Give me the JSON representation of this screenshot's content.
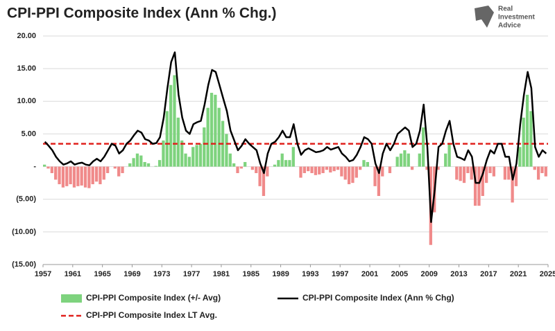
{
  "chart_data": {
    "type": "bar-line",
    "title": "CPI-PPI Composite Index (Ann % Chg.)",
    "logo": [
      "Real",
      "Investment",
      "Advice"
    ],
    "x": [
      1957,
      1957.5,
      1958,
      1958.5,
      1959,
      1959.5,
      1960,
      1960.5,
      1961,
      1961.5,
      1962,
      1962.5,
      1963,
      1963.5,
      1964,
      1964.5,
      1965,
      1965.5,
      1966,
      1966.5,
      1967,
      1967.5,
      1968,
      1968.5,
      1969,
      1969.5,
      1970,
      1970.5,
      1971,
      1971.5,
      1972,
      1972.5,
      1973,
      1973.5,
      1974,
      1974.5,
      1975,
      1975.5,
      1976,
      1976.5,
      1977,
      1977.5,
      1978,
      1978.5,
      1979,
      1979.5,
      1980,
      1980.5,
      1981,
      1981.5,
      1982,
      1982.5,
      1983,
      1983.5,
      1984,
      1984.5,
      1985,
      1985.5,
      1986,
      1986.5,
      1987,
      1987.5,
      1988,
      1988.5,
      1989,
      1989.5,
      1990,
      1990.5,
      1991,
      1991.5,
      1992,
      1992.5,
      1993,
      1993.5,
      1994,
      1994.5,
      1995,
      1995.5,
      1996,
      1996.5,
      1997,
      1997.5,
      1998,
      1998.5,
      1999,
      1999.5,
      2000,
      2000.5,
      2001,
      2001.5,
      2002,
      2002.5,
      2003,
      2003.5,
      2004,
      2004.5,
      2005,
      2005.5,
      2006,
      2006.5,
      2007,
      2007.5,
      2008,
      2008.5,
      2009,
      2009.5,
      2010,
      2010.5,
      2011,
      2011.5,
      2012,
      2012.5,
      2013,
      2013.5,
      2014,
      2014.5,
      2015,
      2015.5,
      2016,
      2016.5,
      2017,
      2017.5,
      2018,
      2018.5,
      2019,
      2019.5,
      2020,
      2020.5,
      2021,
      2021.5,
      2022,
      2022.5,
      2023,
      2023.5,
      2024,
      2024.5
    ],
    "series": [
      {
        "name": "CPI-PPI Composite Index (+/- Avg)",
        "type": "bar",
        "color": "#7ed37e",
        "negative_color": "#f08a8a",
        "values": [
          0.3,
          -0.3,
          -1.0,
          -2.0,
          -2.7,
          -3.2,
          -3.0,
          -2.7,
          -3.2,
          -3.0,
          -2.9,
          -3.2,
          -3.3,
          -2.7,
          -2.3,
          -2.7,
          -2.0,
          -1.0,
          0.0,
          -0.3,
          -1.5,
          -1.0,
          0.0,
          0.5,
          1.3,
          2.0,
          1.7,
          0.7,
          0.5,
          0.0,
          0.1,
          1.0,
          4.0,
          8.5,
          12.5,
          14.0,
          7.5,
          4.0,
          2.0,
          1.5,
          3.0,
          3.3,
          3.5,
          6.0,
          9.0,
          11.3,
          11.0,
          9.0,
          7.0,
          5.0,
          2.0,
          0.5,
          -1.0,
          -0.3,
          0.7,
          0.0,
          -0.5,
          -1.0,
          -3.0,
          -4.5,
          -1.5,
          0.0,
          0.3,
          1.0,
          2.0,
          1.0,
          1.0,
          3.0,
          0.0,
          -1.7,
          -1.0,
          -0.7,
          -1.0,
          -1.3,
          -1.2,
          -1.0,
          -0.5,
          -0.9,
          -0.7,
          -0.5,
          -1.5,
          -2.0,
          -2.7,
          -2.5,
          -1.7,
          -0.5,
          1.0,
          0.7,
          0.0,
          -3.0,
          -4.5,
          -1.5,
          0.0,
          -1.0,
          0.0,
          1.5,
          2.0,
          2.5,
          2.0,
          -0.5,
          0.0,
          2.0,
          6.0,
          -0.5,
          -12.0,
          -7.0,
          -0.5,
          0.0,
          2.0,
          3.5,
          0.0,
          -2.0,
          -2.2,
          -2.5,
          -1.0,
          -2.0,
          -6.0,
          -6.0,
          -4.5,
          -2.5,
          -1.0,
          -1.5,
          0.0,
          0.0,
          -2.0,
          -2.0,
          -5.5,
          -3.0,
          3.0,
          7.5,
          11.0,
          8.5,
          -0.5,
          -2.0,
          -1.0,
          -1.5
        ]
      },
      {
        "name": "CPI-PPI Composite Index (Ann %  Chg)",
        "type": "line",
        "color": "#000000",
        "values": [
          3.8,
          3.2,
          2.5,
          1.5,
          0.8,
          0.3,
          0.5,
          0.8,
          0.3,
          0.5,
          0.6,
          0.3,
          0.2,
          0.8,
          1.2,
          0.8,
          1.5,
          2.5,
          3.5,
          3.2,
          2.0,
          2.5,
          3.5,
          4.0,
          4.8,
          5.5,
          5.2,
          4.2,
          4.0,
          3.5,
          3.6,
          4.5,
          7.5,
          12.0,
          16.0,
          17.5,
          11.0,
          7.5,
          5.5,
          5.0,
          6.5,
          6.8,
          7.0,
          9.5,
          12.5,
          14.8,
          14.5,
          12.5,
          10.5,
          8.5,
          5.5,
          4.0,
          2.5,
          3.2,
          4.2,
          3.5,
          3.0,
          2.5,
          0.5,
          -1.0,
          2.0,
          3.5,
          3.8,
          4.5,
          5.5,
          4.5,
          4.5,
          6.5,
          3.5,
          1.8,
          2.5,
          2.8,
          2.5,
          2.2,
          2.3,
          2.5,
          3.0,
          2.6,
          2.8,
          3.0,
          2.0,
          1.5,
          0.8,
          1.0,
          1.8,
          3.0,
          4.5,
          4.2,
          3.5,
          0.5,
          -1.0,
          2.0,
          3.5,
          2.5,
          3.5,
          5.0,
          5.5,
          6.0,
          5.5,
          3.0,
          3.5,
          5.5,
          9.5,
          3.0,
          -8.5,
          -3.5,
          3.0,
          3.5,
          5.5,
          7.0,
          3.5,
          1.5,
          1.3,
          1.0,
          2.5,
          1.5,
          -2.5,
          -2.5,
          -1.0,
          1.0,
          2.5,
          2.0,
          3.5,
          3.5,
          1.5,
          1.5,
          -2.0,
          0.5,
          6.5,
          11.0,
          14.5,
          12.0,
          3.0,
          1.5,
          2.5,
          2.0
        ]
      }
    ],
    "average": {
      "name": "CPI-PPI Composite Index LT Avg.",
      "value": 3.5,
      "color": "#e0201c"
    },
    "xlim": [
      1957,
      2025
    ],
    "xticks": [
      1957,
      1961,
      1965,
      1969,
      1973,
      1977,
      1981,
      1985,
      1989,
      1993,
      1997,
      2001,
      2005,
      2009,
      2013,
      2017,
      2021,
      2025
    ],
    "ylim": [
      -15,
      20
    ],
    "yticks": [
      {
        "value": 20,
        "label": "20.00"
      },
      {
        "value": 15,
        "label": "15.00"
      },
      {
        "value": 10,
        "label": "10.00"
      },
      {
        "value": 5,
        "label": "5.00"
      },
      {
        "value": 0,
        "label": "-"
      },
      {
        "value": -5,
        "label": "(5.00)"
      },
      {
        "value": -10,
        "label": "(10.00)"
      },
      {
        "value": -15,
        "label": "(15.00)"
      }
    ],
    "grid": true
  }
}
